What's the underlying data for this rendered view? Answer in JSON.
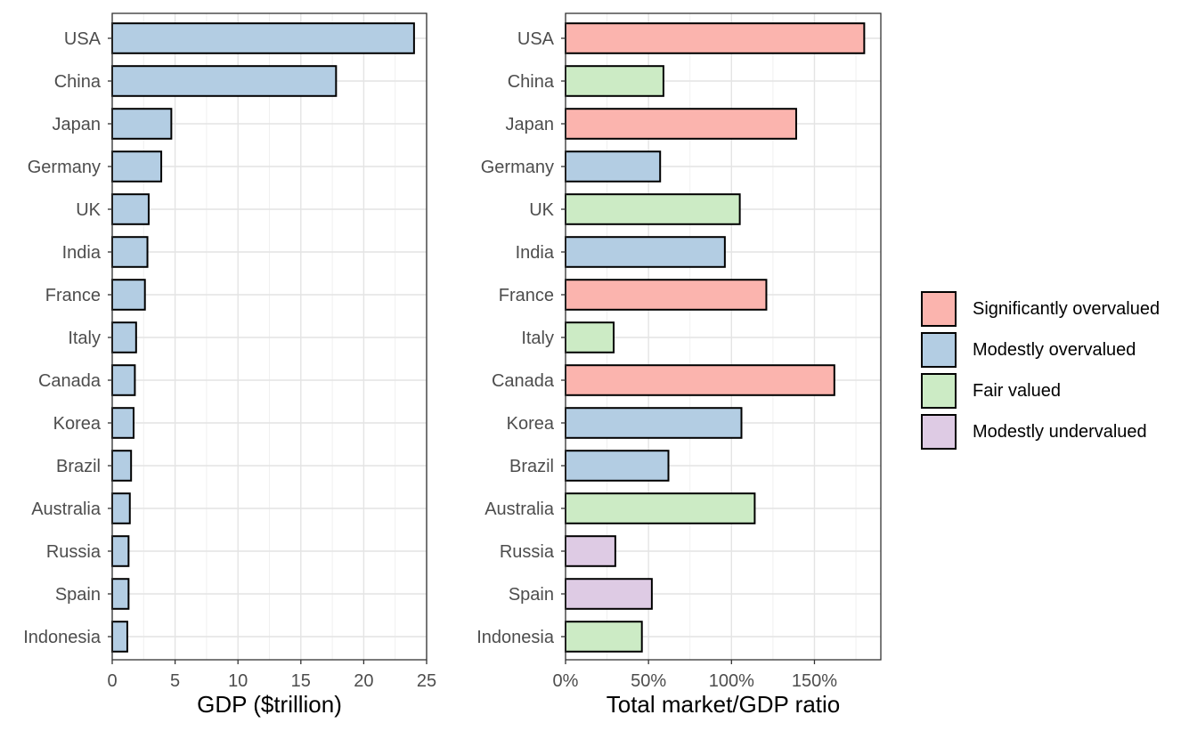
{
  "chart_data": [
    {
      "type": "bar",
      "orientation": "horizontal",
      "categories": [
        "USA",
        "China",
        "Japan",
        "Germany",
        "UK",
        "India",
        "France",
        "Italy",
        "Canada",
        "Korea",
        "Brazil",
        "Australia",
        "Russia",
        "Spain",
        "Indonesia"
      ],
      "values": [
        24.0,
        17.8,
        4.7,
        3.9,
        2.9,
        2.8,
        2.6,
        1.9,
        1.8,
        1.7,
        1.5,
        1.4,
        1.3,
        1.3,
        1.2
      ],
      "xlabel": "GDP ($trillion)",
      "xlim": [
        0,
        25
      ],
      "ticks": [
        0,
        5,
        10,
        15,
        20,
        25
      ],
      "tick_labels": [
        "0",
        "5",
        "10",
        "15",
        "20",
        "25"
      ],
      "fill_color": "#b3cde3",
      "grid": true
    },
    {
      "type": "bar",
      "orientation": "horizontal",
      "categories": [
        "USA",
        "China",
        "Japan",
        "Germany",
        "UK",
        "India",
        "France",
        "Italy",
        "Canada",
        "Korea",
        "Brazil",
        "Australia",
        "Russia",
        "Spain",
        "Indonesia"
      ],
      "values": [
        180,
        59,
        139,
        57,
        105,
        96,
        121,
        29,
        162,
        106,
        62,
        114,
        30,
        52,
        46
      ],
      "unit": "%",
      "groups": [
        "Significantly overvalued",
        "Fair valued",
        "Significantly overvalued",
        "Modestly overvalued",
        "Fair valued",
        "Modestly overvalued",
        "Significantly overvalued",
        "Fair valued",
        "Significantly overvalued",
        "Modestly overvalued",
        "Modestly overvalued",
        "Fair valued",
        "Modestly undervalued",
        "Modestly undervalued",
        "Fair valued"
      ],
      "xlabel": "Total market/GDP ratio",
      "xlim": [
        0,
        190
      ],
      "ticks": [
        0,
        50,
        100,
        150
      ],
      "tick_labels": [
        "0%",
        "50%",
        "100%",
        "150%"
      ],
      "grid": true
    }
  ],
  "legend": {
    "placement": "right",
    "items": [
      {
        "label": "Significantly overvalued",
        "color": "#fbb4ae"
      },
      {
        "label": "Modestly overvalued",
        "color": "#b3cde3"
      },
      {
        "label": "Fair valued",
        "color": "#ccebc5"
      },
      {
        "label": "Modestly undervalued",
        "color": "#decbe4"
      }
    ]
  }
}
